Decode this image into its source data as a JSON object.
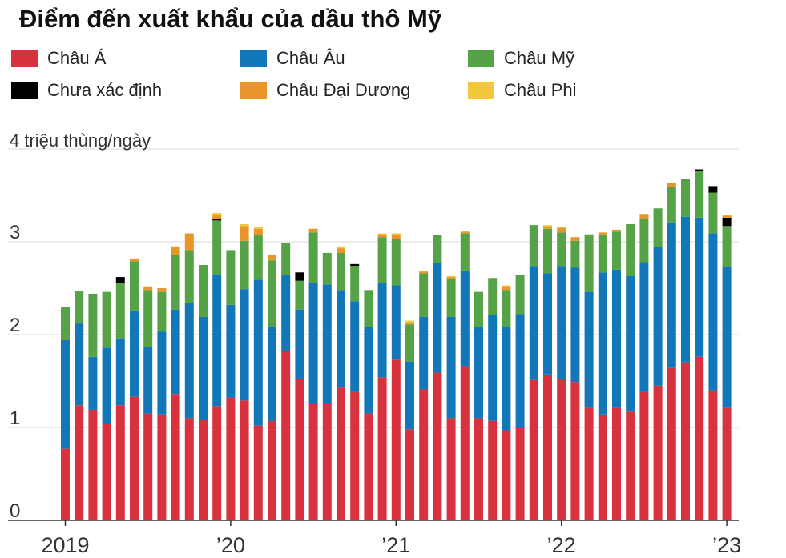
{
  "title": "Điểm đến xuất khẩu của dầu thô Mỹ",
  "legend": [
    {
      "key": "asia",
      "label": "Châu Á",
      "color": "#d8323e"
    },
    {
      "key": "europe",
      "label": "Châu Âu",
      "color": "#1277b8"
    },
    {
      "key": "americas",
      "label": "Châu Mỹ",
      "color": "#55a346"
    },
    {
      "key": "unknown",
      "label": "Chưa xác định",
      "color": "#000000"
    },
    {
      "key": "oceania",
      "label": "Châu Đại Dương",
      "color": "#e8962a"
    },
    {
      "key": "africa",
      "label": "Châu Phi",
      "color": "#f2c73a"
    }
  ],
  "chart_data": {
    "type": "bar",
    "stacked": true,
    "title": "Điểm đến xuất khẩu của dầu thô Mỹ",
    "ylabel": "4 triệu thùng/ngày",
    "ylim": [
      0,
      4
    ],
    "y_ticks": [
      0,
      1,
      2,
      3
    ],
    "x_ticks": [
      {
        "index": 0,
        "label": "2019"
      },
      {
        "index": 12,
        "label": "’20"
      },
      {
        "index": 24,
        "label": "’21"
      },
      {
        "index": 36,
        "label": "’22"
      },
      {
        "index": 48,
        "label": "’23"
      }
    ],
    "categories": [
      "2019-01",
      "2019-02",
      "2019-03",
      "2019-04",
      "2019-05",
      "2019-06",
      "2019-07",
      "2019-08",
      "2019-09",
      "2019-10",
      "2019-11",
      "2019-12",
      "2020-01",
      "2020-02",
      "2020-03",
      "2020-04",
      "2020-05",
      "2020-06",
      "2020-07",
      "2020-08",
      "2020-09",
      "2020-10",
      "2020-11",
      "2020-12",
      "2021-01",
      "2021-02",
      "2021-03",
      "2021-04",
      "2021-05",
      "2021-06",
      "2021-07",
      "2021-08",
      "2021-09",
      "2021-10",
      "2021-11",
      "2021-12",
      "2022-01",
      "2022-02",
      "2022-03",
      "2022-04",
      "2022-05",
      "2022-06",
      "2022-07",
      "2022-08",
      "2022-09",
      "2022-10",
      "2022-11",
      "2022-12",
      "2023-01"
    ],
    "series": [
      {
        "name": "Châu Á",
        "key": "asia",
        "values": [
          0.77,
          1.24,
          1.19,
          1.04,
          1.24,
          1.33,
          1.15,
          1.14,
          1.36,
          1.1,
          1.08,
          1.23,
          1.32,
          1.29,
          1.02,
          1.07,
          1.82,
          1.52,
          1.25,
          1.25,
          1.43,
          1.38,
          1.15,
          1.54,
          1.73,
          0.98,
          1.41,
          1.59,
          1.1,
          1.66,
          1.1,
          1.07,
          0.97,
          1.0,
          1.51,
          1.57,
          1.52,
          1.49,
          1.21,
          1.14,
          1.21,
          1.17,
          1.38,
          1.45,
          1.64,
          1.7,
          1.76,
          1.4,
          1.21
        ]
      },
      {
        "name": "Châu Âu",
        "key": "europe",
        "values": [
          1.17,
          0.88,
          0.57,
          0.82,
          0.72,
          0.93,
          0.72,
          0.89,
          0.91,
          1.24,
          1.11,
          1.42,
          1.0,
          1.2,
          1.57,
          1.01,
          0.82,
          0.75,
          1.31,
          1.29,
          1.05,
          0.98,
          0.93,
          1.02,
          0.8,
          0.73,
          0.78,
          1.18,
          1.09,
          1.03,
          0.98,
          1.14,
          1.11,
          1.22,
          1.23,
          1.09,
          1.22,
          1.23,
          1.25,
          1.53,
          1.49,
          1.46,
          1.4,
          1.49,
          1.57,
          1.57,
          1.5,
          1.69,
          1.52
        ]
      },
      {
        "name": "Châu Mỹ",
        "key": "americas",
        "values": [
          0.36,
          0.35,
          0.68,
          0.6,
          0.6,
          0.53,
          0.61,
          0.43,
          0.59,
          0.57,
          0.56,
          0.58,
          0.59,
          0.52,
          0.48,
          0.72,
          0.35,
          0.31,
          0.54,
          0.34,
          0.4,
          0.38,
          0.4,
          0.49,
          0.5,
          0.4,
          0.47,
          0.3,
          0.41,
          0.4,
          0.38,
          0.4,
          0.4,
          0.42,
          0.44,
          0.48,
          0.36,
          0.29,
          0.62,
          0.41,
          0.41,
          0.56,
          0.47,
          0.42,
          0.38,
          0.41,
          0.5,
          0.44,
          0.44
        ]
      },
      {
        "name": "Chưa xác định",
        "key": "unknown",
        "values": [
          0,
          0,
          0,
          0,
          0.06,
          0,
          0,
          0,
          0,
          0,
          0,
          0.02,
          0,
          0,
          0,
          0,
          0,
          0.09,
          0,
          0,
          0,
          0.02,
          0,
          0,
          0,
          0,
          0,
          0,
          0,
          0,
          0,
          0,
          0,
          0,
          0,
          0,
          0,
          0,
          0,
          0,
          0,
          0,
          0,
          0,
          0,
          0,
          0.02,
          0.07,
          0.09
        ]
      },
      {
        "name": "Châu Đại Dương",
        "key": "oceania",
        "values": [
          0,
          0,
          0,
          0,
          0,
          0.03,
          0.03,
          0.04,
          0.09,
          0.18,
          0,
          0.04,
          0,
          0.16,
          0.07,
          0.06,
          0,
          0,
          0.04,
          0,
          0.05,
          0,
          0,
          0.02,
          0.04,
          0.02,
          0.02,
          0,
          0.02,
          0.02,
          0,
          0,
          0.03,
          0,
          0,
          0.02,
          0.05,
          0.04,
          0,
          0.02,
          0.02,
          0,
          0.05,
          0,
          0.04,
          0,
          0,
          0,
          0.02
        ]
      },
      {
        "name": "Châu Phi",
        "key": "africa",
        "values": [
          0,
          0,
          0,
          0,
          0,
          0,
          0.01,
          0,
          0,
          0,
          0,
          0.02,
          0,
          0.02,
          0.02,
          0,
          0,
          0,
          0,
          0,
          0.02,
          0,
          0,
          0.02,
          0.02,
          0.02,
          0.01,
          0,
          0.01,
          0,
          0,
          0,
          0.02,
          0,
          0,
          0.02,
          0.01,
          0,
          0,
          0,
          0,
          0,
          0,
          0,
          0,
          0,
          0,
          0,
          0.01
        ]
      }
    ]
  }
}
